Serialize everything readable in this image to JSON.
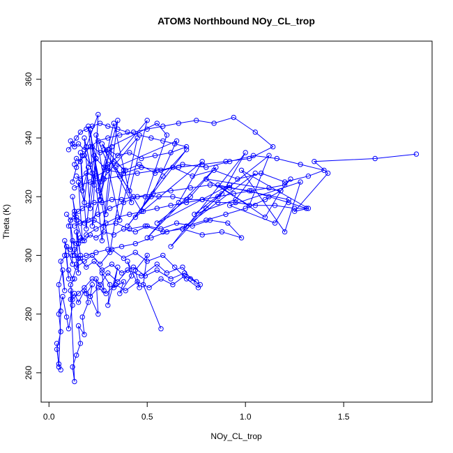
{
  "chart_data": {
    "type": "line",
    "title": "ATOM3 Northbound NOy_CL_trop",
    "xlabel": "NOy_CL_trop",
    "ylabel": "Theta (K)",
    "xlim": [
      -0.04,
      1.95
    ],
    "ylim": [
      250,
      373
    ],
    "xticks": [
      0.0,
      0.5,
      1.0,
      1.5
    ],
    "xtick_labels": [
      "0.0",
      "0.5",
      "1.0",
      "1.5"
    ],
    "yticks": [
      260,
      280,
      300,
      320,
      340,
      360
    ],
    "ytick_labels": [
      "260",
      "280",
      "300",
      "320",
      "340",
      "360"
    ],
    "grid": false,
    "legend": "none",
    "color": "#0000ff",
    "marker": "open-circle",
    "series": [
      {
        "x": [
          0.04,
          0.05,
          0.06,
          0.05,
          0.07,
          0.08,
          0.06,
          0.09,
          0.1,
          0.08,
          0.12,
          0.11,
          0.13,
          0.15,
          0.14,
          0.16,
          0.13,
          0.12,
          0.14,
          0.17,
          0.15,
          0.18,
          0.2,
          0.17,
          0.16,
          0.19,
          0.22,
          0.18,
          0.21,
          0.24,
          0.2,
          0.23,
          0.19,
          0.25,
          0.22,
          0.28,
          0.24,
          0.3,
          0.26,
          0.21,
          0.27,
          0.32,
          0.25,
          0.35,
          0.29,
          0.23,
          0.31,
          0.38,
          0.27,
          0.42,
          0.33,
          0.26,
          0.45,
          0.36,
          0.3,
          0.5,
          0.41,
          0.28,
          0.55,
          0.6,
          0.47,
          0.34,
          0.65,
          0.52,
          0.4,
          0.7,
          0.58,
          0.44,
          0.78,
          0.66,
          0.5,
          0.85,
          0.72,
          0.55,
          0.92,
          0.8,
          0.62,
          1.0,
          0.88,
          0.68,
          1.05,
          0.95,
          0.74,
          1.12,
          1.02,
          0.8,
          1.18,
          1.1,
          0.86,
          1.22,
          1.15,
          0.92,
          1.28,
          1.2,
          0.98,
          1.32,
          1.25,
          1.42,
          1.35,
          1.66,
          1.87
        ],
        "y": [
          270,
          262,
          281,
          290,
          295,
          288,
          298,
          300,
          292,
          305,
          297,
          310,
          302,
          294,
          308,
          300,
          315,
          320,
          312,
          305,
          325,
          318,
          330,
          322,
          335,
          309,
          328,
          340,
          316,
          333,
          344,
          324,
          337,
          348,
          310,
          326,
          341,
          331,
          319,
          343,
          305,
          337,
          322,
          346,
          314,
          334,
          301,
          329,
          338,
          318,
          345,
          325,
          340,
          312,
          330,
          346,
          322,
          336,
          345,
          341,
          315,
          330,
          339,
          320,
          310,
          336,
          327,
          313,
          332,
          318,
          306,
          330,
          320,
          311,
          324,
          316,
          303,
          335,
          321,
          309,
          328,
          319,
          314,
          334,
          317,
          326,
          322,
          313,
          324,
          319,
          311,
          317,
          325,
          308,
          329,
          316,
          315,
          328,
          332,
          333,
          334.5
        ]
      },
      {
        "x": [
          0.06,
          0.05,
          0.04,
          0.06,
          0.05,
          0.07,
          0.09,
          0.1,
          0.12,
          0.11,
          0.13,
          0.12,
          0.14,
          0.16,
          0.15,
          0.18,
          0.17,
          0.2,
          0.19,
          0.22,
          0.21,
          0.25,
          0.24,
          0.28,
          0.27,
          0.31,
          0.3,
          0.35,
          0.33,
          0.38,
          0.36,
          0.42,
          0.4,
          0.46,
          0.44,
          0.5,
          0.48,
          0.57
        ],
        "y": [
          261,
          263,
          268,
          274,
          280,
          286,
          279,
          275,
          283,
          288,
          257,
          262,
          266,
          270,
          276,
          273,
          279,
          284,
          287,
          290,
          286,
          280,
          292,
          288,
          294,
          290,
          283,
          296,
          289,
          291,
          287,
          293,
          298,
          289,
          295,
          300,
          290,
          275
        ]
      },
      {
        "x": [
          0.1,
          0.12,
          0.14,
          0.18,
          0.22,
          0.26,
          0.32,
          0.38,
          0.44,
          0.5,
          0.58,
          0.64,
          0.7,
          0.76,
          0.77,
          0.72,
          0.68,
          0.6,
          0.55,
          0.47,
          0.4,
          0.35,
          0.3,
          0.26,
          0.22,
          0.18,
          0.15,
          0.12,
          0.11,
          0.13
        ],
        "y": [
          295,
          292,
          296,
          298,
          300,
          297,
          302,
          299,
          301,
          298,
          300,
          296,
          292,
          289,
          290,
          292,
          296,
          294,
          297,
          293,
          295,
          291,
          294,
          290,
          292,
          289,
          287,
          285,
          290,
          292
        ]
      },
      {
        "x": [
          0.12,
          0.15,
          0.19,
          0.24,
          0.29,
          0.35,
          0.41,
          0.48,
          0.55,
          0.62,
          0.7,
          0.78,
          0.86,
          0.94,
          1.03,
          1.12,
          1.2,
          1.23,
          1.18,
          1.1,
          1.0,
          0.9,
          0.8,
          0.7,
          0.6,
          0.52,
          0.44,
          0.37,
          0.3,
          0.24,
          0.19,
          0.15,
          0.13
        ],
        "y": [
          300,
          304,
          307,
          309,
          311,
          313,
          314,
          315,
          316,
          317,
          318,
          319,
          320,
          321,
          322,
          323,
          324,
          326,
          322,
          319,
          316,
          314,
          312,
          310,
          308,
          306,
          304,
          303,
          302,
          301,
          300,
          299,
          300
        ]
      },
      {
        "x": [
          0.12,
          0.14,
          0.17,
          0.21,
          0.25,
          0.3,
          0.36,
          0.43,
          0.5,
          0.58,
          0.66,
          0.75,
          0.84,
          0.94,
          1.05,
          1.14,
          1.02,
          0.9,
          0.78,
          0.66,
          0.55,
          0.45,
          0.36,
          0.28,
          0.21,
          0.16,
          0.13
        ],
        "y": [
          325,
          330,
          334,
          337,
          339,
          340,
          341,
          342,
          343,
          344,
          345,
          346,
          345,
          347,
          342,
          337,
          333,
          332,
          331,
          330,
          329,
          328,
          327,
          326,
          325,
          324,
          323
        ]
      },
      {
        "x": [
          0.1,
          0.11,
          0.13,
          0.15,
          0.17,
          0.2,
          0.23,
          0.27,
          0.32,
          0.37,
          0.43,
          0.49,
          0.56,
          0.63,
          0.7,
          0.78,
          0.86,
          0.95,
          1.05,
          1.15,
          1.25,
          1.31,
          1.22,
          1.12,
          1.02,
          0.92,
          0.82,
          0.72,
          0.62,
          0.53,
          0.45,
          0.38,
          0.31,
          0.25,
          0.2,
          0.16,
          0.13
        ],
        "y": [
          310,
          312,
          314,
          315,
          316,
          317,
          318,
          318,
          319,
          319,
          320,
          320,
          320,
          320,
          319,
          319,
          318,
          318,
          317,
          317,
          316,
          316,
          318,
          320,
          322,
          323,
          324,
          323,
          322,
          321,
          320,
          318,
          316,
          314,
          312,
          311,
          310
        ]
      },
      {
        "x": [
          0.13,
          0.14,
          0.16,
          0.18,
          0.21,
          0.24,
          0.28,
          0.33,
          0.39,
          0.46,
          0.54,
          0.63,
          0.73,
          0.84,
          0.96,
          1.08,
          1.2,
          1.32,
          1.4,
          1.28,
          1.16,
          1.04,
          0.92,
          0.8,
          0.68,
          0.57,
          0.47,
          0.38,
          0.3,
          0.24,
          0.19,
          0.16,
          0.14
        ],
        "y": [
          331,
          333,
          332,
          334,
          331,
          333,
          330,
          332,
          329,
          331,
          328,
          330,
          327,
          329,
          326,
          328,
          325,
          327,
          329,
          331,
          333,
          334,
          332,
          330,
          331,
          329,
          330,
          328,
          329,
          327,
          328,
          326,
          327
        ]
      },
      {
        "x": [
          0.08,
          0.09,
          0.11,
          0.12,
          0.14,
          0.16,
          0.18,
          0.21,
          0.24,
          0.28,
          0.33,
          0.38,
          0.44,
          0.5,
          0.57,
          0.65,
          0.73,
          0.82,
          0.91,
          0.98,
          0.88,
          0.78,
          0.68,
          0.58,
          0.49,
          0.41,
          0.34,
          0.28,
          0.23,
          0.18,
          0.14,
          0.11,
          0.09
        ],
        "y": [
          300,
          303,
          302,
          305,
          304,
          306,
          305,
          307,
          306,
          308,
          307,
          309,
          308,
          310,
          309,
          311,
          310,
          312,
          311,
          306,
          308,
          307,
          309,
          308,
          310,
          309,
          311,
          310,
          312,
          311,
          313,
          312,
          314
        ]
      },
      {
        "x": [
          0.1,
          0.12,
          0.14,
          0.16,
          0.19,
          0.22,
          0.26,
          0.3,
          0.35,
          0.4,
          0.46,
          0.52,
          0.58,
          0.64,
          0.7,
          0.62,
          0.54,
          0.47,
          0.41,
          0.35,
          0.3,
          0.26,
          0.22,
          0.18,
          0.15,
          0.13,
          0.11
        ],
        "y": [
          336,
          338,
          340,
          342,
          343,
          344,
          345,
          344,
          343,
          342,
          341,
          340,
          339,
          338,
          337,
          335,
          334,
          333,
          335,
          334,
          336,
          335,
          337,
          336,
          338,
          337,
          339
        ]
      },
      {
        "x": [
          0.11,
          0.13,
          0.15,
          0.18,
          0.21,
          0.25,
          0.29,
          0.34,
          0.39,
          0.45,
          0.51,
          0.57,
          0.63,
          0.69,
          0.75,
          0.69,
          0.62,
          0.55,
          0.49,
          0.43,
          0.37,
          0.32,
          0.27,
          0.23,
          0.19,
          0.16,
          0.14
        ],
        "y": [
          285,
          287,
          284,
          288,
          286,
          289,
          287,
          290,
          288,
          291,
          289,
          292,
          290,
          293,
          291,
          294,
          292,
          295,
          293,
          296,
          294,
          297,
          295,
          298,
          296,
          299,
          297
        ]
      }
    ]
  }
}
